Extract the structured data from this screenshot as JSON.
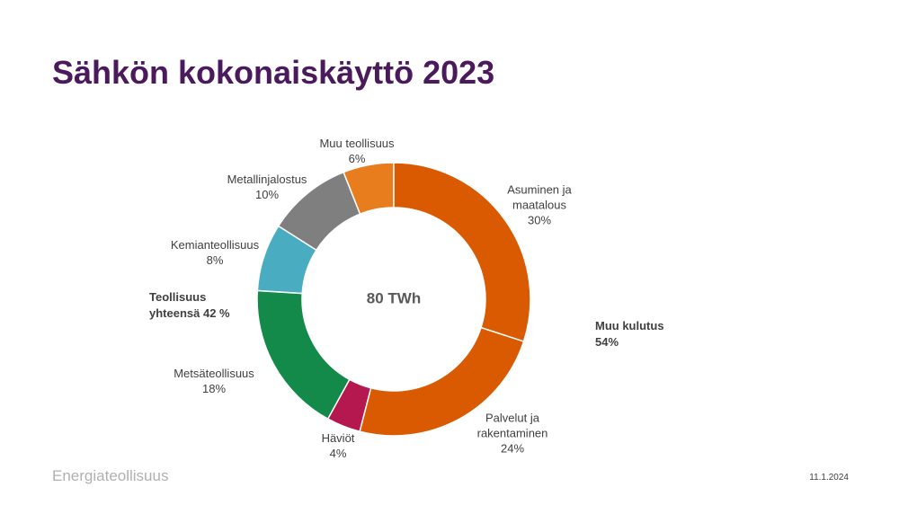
{
  "chart_data": {
    "type": "donut",
    "title": "Sähkön kokonaiskäyttö 2023",
    "center_label": "80 TWh",
    "categories": [
      "Asuminen ja maatalous",
      "Palvelut ja rakentaminen",
      "Häviöt",
      "Metsäteollisuus",
      "Kemianteollisuus",
      "Metallinjalostus",
      "Muu teollisuus"
    ],
    "values": [
      30,
      24,
      4,
      18,
      8,
      10,
      6
    ],
    "value_labels": [
      "30%",
      "24%",
      "4%",
      "18%",
      "8%",
      "10%",
      "6%"
    ],
    "colors": [
      "#d95a00",
      "#d95a00",
      "#b5174f",
      "#148a4a",
      "#4aacc0",
      "#7f7f7f",
      "#e87d1e"
    ],
    "annotations": [
      "Teollisuus yhteensä 42 %",
      "Muu kulutus 54%"
    ]
  },
  "footer": {
    "brand": "Energiateollisuus",
    "date": "11.1.2024"
  }
}
